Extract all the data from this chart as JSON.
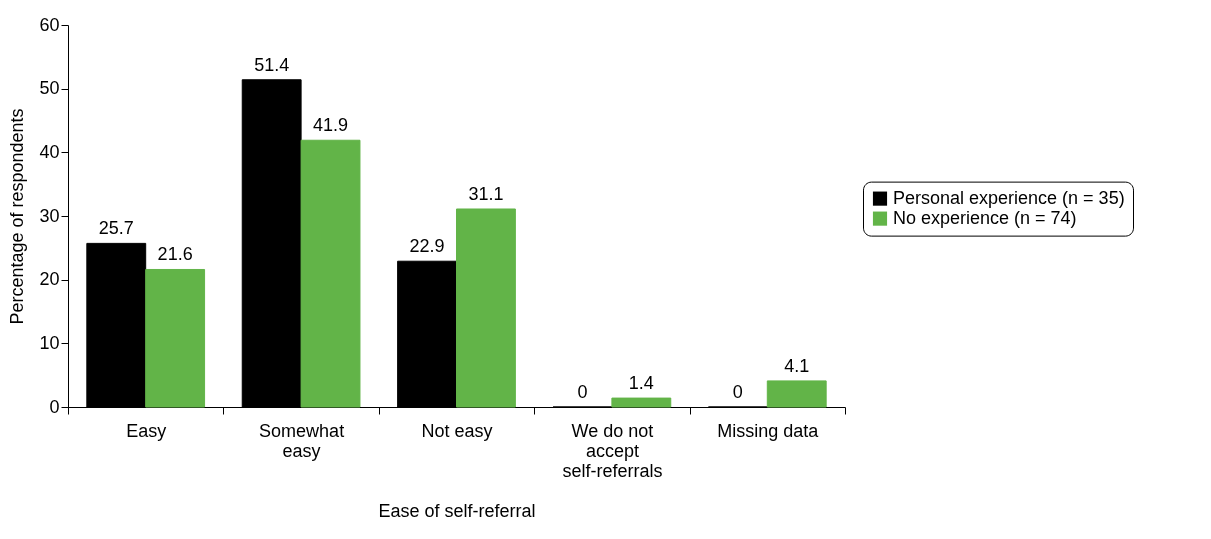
{
  "chart_data": {
    "type": "bar",
    "xlabel": "Ease of self-referral",
    "ylabel": "Percentage of respondents",
    "categories": [
      "Easy",
      "Somewhat easy",
      "Not easy",
      "We do not accept self-referrals",
      "Missing data"
    ],
    "series": [
      {
        "name": "Personal experience (n = 35)",
        "color": "#000000",
        "values": [
          25.7,
          51.4,
          22.9,
          0,
          0
        ]
      },
      {
        "name": "No experience (n = 74)",
        "color": "#62b448",
        "values": [
          21.6,
          41.9,
          31.1,
          1.4,
          4.1
        ]
      }
    ],
    "ylim": [
      0,
      60
    ],
    "yticks": [
      0,
      10,
      20,
      30,
      40,
      50,
      60
    ],
    "grid": false,
    "legend": "right",
    "data_labels": true
  }
}
